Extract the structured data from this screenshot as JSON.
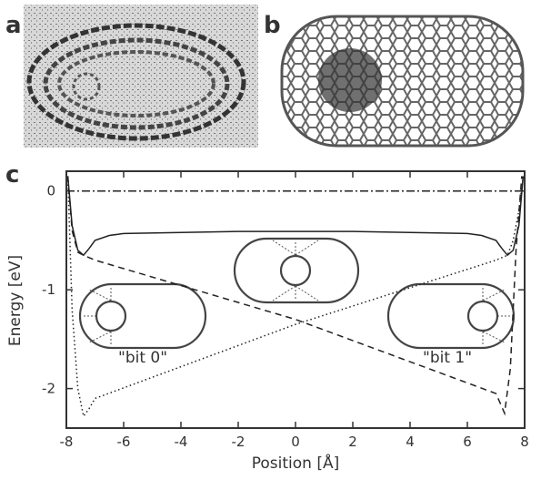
{
  "panel_labels": [
    "a",
    "b"
  ],
  "chart_data": {
    "type": "line",
    "panel_label": "c",
    "x_label": "Position [Å]",
    "y_label": "Energy [eV]",
    "xlim": [
      -8,
      8
    ],
    "ylim": [
      -2.4,
      0.2
    ],
    "xticks": [
      -8,
      -6,
      -4,
      -2,
      0,
      2,
      4,
      6,
      8
    ],
    "yticks": [
      0,
      -1,
      -2
    ],
    "annotations": [
      "\"bit 0\"",
      "\"bit 1\""
    ],
    "series": [
      {
        "color": "#222222",
        "style": "dashdot",
        "x": [
          -8,
          8
        ],
        "values": [
          0,
          0
        ]
      },
      {
        "color": "#222222",
        "style": "solid",
        "x": [
          -7.95,
          -7.8,
          -7.6,
          -7.4,
          -7.2,
          -7,
          -6.5,
          -6,
          -4,
          -2,
          0,
          2,
          4,
          6,
          6.5,
          7,
          7.2,
          7.4,
          7.6,
          7.8,
          7.95
        ],
        "values": [
          0.15,
          -0.35,
          -0.6,
          -0.65,
          -0.58,
          -0.5,
          -0.45,
          -0.43,
          -0.42,
          -0.41,
          -0.41,
          -0.41,
          -0.42,
          -0.43,
          -0.45,
          -0.5,
          -0.58,
          -0.65,
          -0.6,
          -0.35,
          0.15
        ]
      },
      {
        "color": "#222222",
        "style": "dashed",
        "x": [
          -7.95,
          -7.8,
          -7.6,
          -7.4,
          -7,
          0,
          7,
          7.3,
          7.5,
          7.7,
          7.9
        ],
        "values": [
          0.15,
          -0.4,
          -0.62,
          -0.65,
          -0.7,
          -1.3,
          -2.05,
          -2.25,
          -1.8,
          -0.6,
          0.15
        ]
      },
      {
        "color": "#222222",
        "style": "dotted",
        "x": [
          -7.95,
          -7.8,
          -7.6,
          -7.4,
          -7.2,
          -7,
          0,
          7,
          7.4,
          7.6,
          7.8,
          7.95
        ],
        "values": [
          0.15,
          -1.2,
          -2.0,
          -2.28,
          -2.2,
          -2.1,
          -1.35,
          -0.7,
          -0.65,
          -0.5,
          -0.2,
          0.15
        ]
      }
    ]
  }
}
